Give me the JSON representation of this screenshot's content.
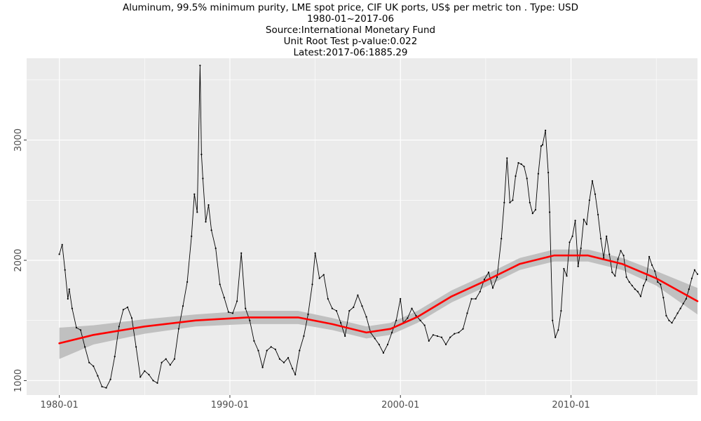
{
  "chart_data": {
    "type": "line",
    "title_lines": [
      "Aluminum, 99.5% minimum purity, LME spot price, CIF UK ports, US$ per metric ton . Type: USD",
      "1980-01~2017-06",
      "Source:International Monetary Fund",
      "Unit Root Test p-value:0.022",
      "Latest:2017-06:1885.29"
    ],
    "xlabel": "",
    "ylabel": "",
    "x_range": [
      "1978-02",
      "2017-06"
    ],
    "ylim": [
      880,
      3680
    ],
    "x_ticks": [
      "1980-01",
      "1990-01",
      "2000-01",
      "2010-01"
    ],
    "y_ticks": [
      1000,
      2000,
      3000
    ],
    "grid": true,
    "legend": "none",
    "colors": {
      "panel_background": "#ebebeb",
      "grid": "#ffffff",
      "series_line": "#000000",
      "smooth_line": "#ff0000",
      "confidence_band": "#bebebe"
    },
    "series": [
      {
        "values": [
          [
            "1980-01",
            2050
          ],
          [
            "1980-03",
            2130
          ],
          [
            "1980-05",
            1920
          ],
          [
            "1980-07",
            1680
          ],
          [
            "1980-08",
            1760
          ],
          [
            "1980-10",
            1600
          ],
          [
            "1981-01",
            1440
          ],
          [
            "1981-04",
            1420
          ],
          [
            "1981-07",
            1280
          ],
          [
            "1981-10",
            1150
          ],
          [
            "1982-01",
            1120
          ],
          [
            "1982-04",
            1040
          ],
          [
            "1982-07",
            950
          ],
          [
            "1982-10",
            940
          ],
          [
            "1983-01",
            1010
          ],
          [
            "1983-04",
            1200
          ],
          [
            "1983-07",
            1450
          ],
          [
            "1983-10",
            1590
          ],
          [
            "1984-01",
            1610
          ],
          [
            "1984-04",
            1520
          ],
          [
            "1984-07",
            1280
          ],
          [
            "1984-10",
            1030
          ],
          [
            "1985-01",
            1080
          ],
          [
            "1985-04",
            1050
          ],
          [
            "1985-07",
            1000
          ],
          [
            "1985-10",
            980
          ],
          [
            "1986-01",
            1150
          ],
          [
            "1986-04",
            1180
          ],
          [
            "1986-07",
            1130
          ],
          [
            "1986-10",
            1180
          ],
          [
            "1987-01",
            1430
          ],
          [
            "1987-04",
            1620
          ],
          [
            "1987-07",
            1820
          ],
          [
            "1987-10",
            2200
          ],
          [
            "1987-12",
            2550
          ],
          [
            "1988-02",
            2400
          ],
          [
            "1988-04",
            3620
          ],
          [
            "1988-05",
            2880
          ],
          [
            "1988-06",
            2680
          ],
          [
            "1988-08",
            2320
          ],
          [
            "1988-10",
            2460
          ],
          [
            "1988-12",
            2250
          ],
          [
            "1989-03",
            2100
          ],
          [
            "1989-06",
            1800
          ],
          [
            "1989-09",
            1690
          ],
          [
            "1989-12",
            1570
          ],
          [
            "1990-03",
            1560
          ],
          [
            "1990-06",
            1660
          ],
          [
            "1990-09",
            2060
          ],
          [
            "1990-12",
            1600
          ],
          [
            "1991-03",
            1500
          ],
          [
            "1991-06",
            1330
          ],
          [
            "1991-09",
            1250
          ],
          [
            "1991-12",
            1110
          ],
          [
            "1992-03",
            1250
          ],
          [
            "1992-06",
            1280
          ],
          [
            "1992-09",
            1260
          ],
          [
            "1992-12",
            1180
          ],
          [
            "1993-03",
            1150
          ],
          [
            "1993-06",
            1190
          ],
          [
            "1993-09",
            1100
          ],
          [
            "1993-11",
            1050
          ],
          [
            "1994-02",
            1250
          ],
          [
            "1994-05",
            1370
          ],
          [
            "1994-08",
            1550
          ],
          [
            "1994-11",
            1800
          ],
          [
            "1995-01",
            2060
          ],
          [
            "1995-04",
            1850
          ],
          [
            "1995-07",
            1880
          ],
          [
            "1995-10",
            1680
          ],
          [
            "1996-01",
            1600
          ],
          [
            "1996-04",
            1580
          ],
          [
            "1996-07",
            1480
          ],
          [
            "1996-10",
            1370
          ],
          [
            "1997-01",
            1580
          ],
          [
            "1997-04",
            1610
          ],
          [
            "1997-07",
            1710
          ],
          [
            "1997-10",
            1620
          ],
          [
            "1998-01",
            1530
          ],
          [
            "1998-04",
            1400
          ],
          [
            "1998-07",
            1350
          ],
          [
            "1998-10",
            1300
          ],
          [
            "1999-01",
            1230
          ],
          [
            "1999-04",
            1300
          ],
          [
            "1999-07",
            1400
          ],
          [
            "1999-10",
            1500
          ],
          [
            "2000-01",
            1680
          ],
          [
            "2000-03",
            1480
          ],
          [
            "2000-06",
            1520
          ],
          [
            "2000-09",
            1600
          ],
          [
            "2000-12",
            1540
          ],
          [
            "2001-03",
            1500
          ],
          [
            "2001-06",
            1460
          ],
          [
            "2001-09",
            1330
          ],
          [
            "2001-12",
            1380
          ],
          [
            "2002-03",
            1370
          ],
          [
            "2002-06",
            1360
          ],
          [
            "2002-09",
            1300
          ],
          [
            "2002-12",
            1360
          ],
          [
            "2003-03",
            1390
          ],
          [
            "2003-06",
            1400
          ],
          [
            "2003-09",
            1430
          ],
          [
            "2003-12",
            1560
          ],
          [
            "2004-03",
            1680
          ],
          [
            "2004-06",
            1680
          ],
          [
            "2004-09",
            1740
          ],
          [
            "2004-12",
            1840
          ],
          [
            "2005-03",
            1900
          ],
          [
            "2005-06",
            1770
          ],
          [
            "2005-09",
            1860
          ],
          [
            "2005-12",
            2180
          ],
          [
            "2006-02",
            2480
          ],
          [
            "2006-04",
            2850
          ],
          [
            "2006-06",
            2480
          ],
          [
            "2006-08",
            2500
          ],
          [
            "2006-10",
            2700
          ],
          [
            "2006-12",
            2810
          ],
          [
            "2007-02",
            2800
          ],
          [
            "2007-04",
            2780
          ],
          [
            "2007-06",
            2680
          ],
          [
            "2007-08",
            2480
          ],
          [
            "2007-10",
            2390
          ],
          [
            "2007-12",
            2420
          ],
          [
            "2008-02",
            2720
          ],
          [
            "2008-04",
            2950
          ],
          [
            "2008-05",
            2960
          ],
          [
            "2008-07",
            3080
          ],
          [
            "2008-09",
            2730
          ],
          [
            "2008-10",
            2400
          ],
          [
            "2008-12",
            1500
          ],
          [
            "2009-02",
            1360
          ],
          [
            "2009-04",
            1420
          ],
          [
            "2009-06",
            1580
          ],
          [
            "2009-08",
            1930
          ],
          [
            "2009-10",
            1870
          ],
          [
            "2009-12",
            2150
          ],
          [
            "2010-02",
            2200
          ],
          [
            "2010-04",
            2330
          ],
          [
            "2010-06",
            1950
          ],
          [
            "2010-08",
            2100
          ],
          [
            "2010-10",
            2340
          ],
          [
            "2010-12",
            2300
          ],
          [
            "2011-02",
            2500
          ],
          [
            "2011-04",
            2660
          ],
          [
            "2011-06",
            2550
          ],
          [
            "2011-08",
            2380
          ],
          [
            "2011-10",
            2180
          ],
          [
            "2011-12",
            2020
          ],
          [
            "2012-02",
            2200
          ],
          [
            "2012-04",
            2050
          ],
          [
            "2012-06",
            1900
          ],
          [
            "2012-08",
            1870
          ],
          [
            "2012-10",
            2010
          ],
          [
            "2012-12",
            2080
          ],
          [
            "2013-02",
            2040
          ],
          [
            "2013-04",
            1860
          ],
          [
            "2013-06",
            1820
          ],
          [
            "2013-08",
            1790
          ],
          [
            "2013-10",
            1760
          ],
          [
            "2013-12",
            1740
          ],
          [
            "2014-02",
            1700
          ],
          [
            "2014-04",
            1790
          ],
          [
            "2014-06",
            1840
          ],
          [
            "2014-08",
            2030
          ],
          [
            "2014-10",
            1960
          ],
          [
            "2014-12",
            1910
          ],
          [
            "2015-02",
            1820
          ],
          [
            "2015-04",
            1800
          ],
          [
            "2015-06",
            1690
          ],
          [
            "2015-08",
            1540
          ],
          [
            "2015-10",
            1500
          ],
          [
            "2015-12",
            1480
          ],
          [
            "2016-02",
            1520
          ],
          [
            "2016-04",
            1560
          ],
          [
            "2016-06",
            1600
          ],
          [
            "2016-08",
            1640
          ],
          [
            "2016-10",
            1680
          ],
          [
            "2016-12",
            1760
          ],
          [
            "2017-02",
            1850
          ],
          [
            "2017-04",
            1920
          ],
          [
            "2017-06",
            1885.29
          ]
        ]
      }
    ],
    "smooth": [
      [
        "1980-01",
        1310
      ],
      [
        "1982-01",
        1380
      ],
      [
        "1985-01",
        1450
      ],
      [
        "1988-01",
        1500
      ],
      [
        "1991-01",
        1525
      ],
      [
        "1994-01",
        1525
      ],
      [
        "1996-01",
        1470
      ],
      [
        "1998-01",
        1400
      ],
      [
        "1999-06",
        1430
      ],
      [
        "2001-01",
        1530
      ],
      [
        "2003-01",
        1700
      ],
      [
        "2005-01",
        1830
      ],
      [
        "2007-01",
        1970
      ],
      [
        "2009-01",
        2040
      ],
      [
        "2011-01",
        2040
      ],
      [
        "2013-01",
        1970
      ],
      [
        "2015-01",
        1850
      ],
      [
        "2017-06",
        1660
      ]
    ],
    "smooth_band": [
      [
        "1980-01",
        1180,
        1440
      ],
      [
        "1982-01",
        1300,
        1460
      ],
      [
        "1985-01",
        1390,
        1510
      ],
      [
        "1988-01",
        1450,
        1550
      ],
      [
        "1991-01",
        1470,
        1580
      ],
      [
        "1994-01",
        1470,
        1580
      ],
      [
        "1996-01",
        1420,
        1520
      ],
      [
        "1998-01",
        1350,
        1450
      ],
      [
        "1999-06",
        1380,
        1480
      ],
      [
        "2001-01",
        1480,
        1580
      ],
      [
        "2003-01",
        1650,
        1750
      ],
      [
        "2005-01",
        1780,
        1880
      ],
      [
        "2007-01",
        1920,
        2020
      ],
      [
        "2009-01",
        1990,
        2090
      ],
      [
        "2011-01",
        1990,
        2090
      ],
      [
        "2013-01",
        1920,
        2020
      ],
      [
        "2015-01",
        1790,
        1910
      ],
      [
        "2017-06",
        1550,
        1770
      ]
    ]
  }
}
